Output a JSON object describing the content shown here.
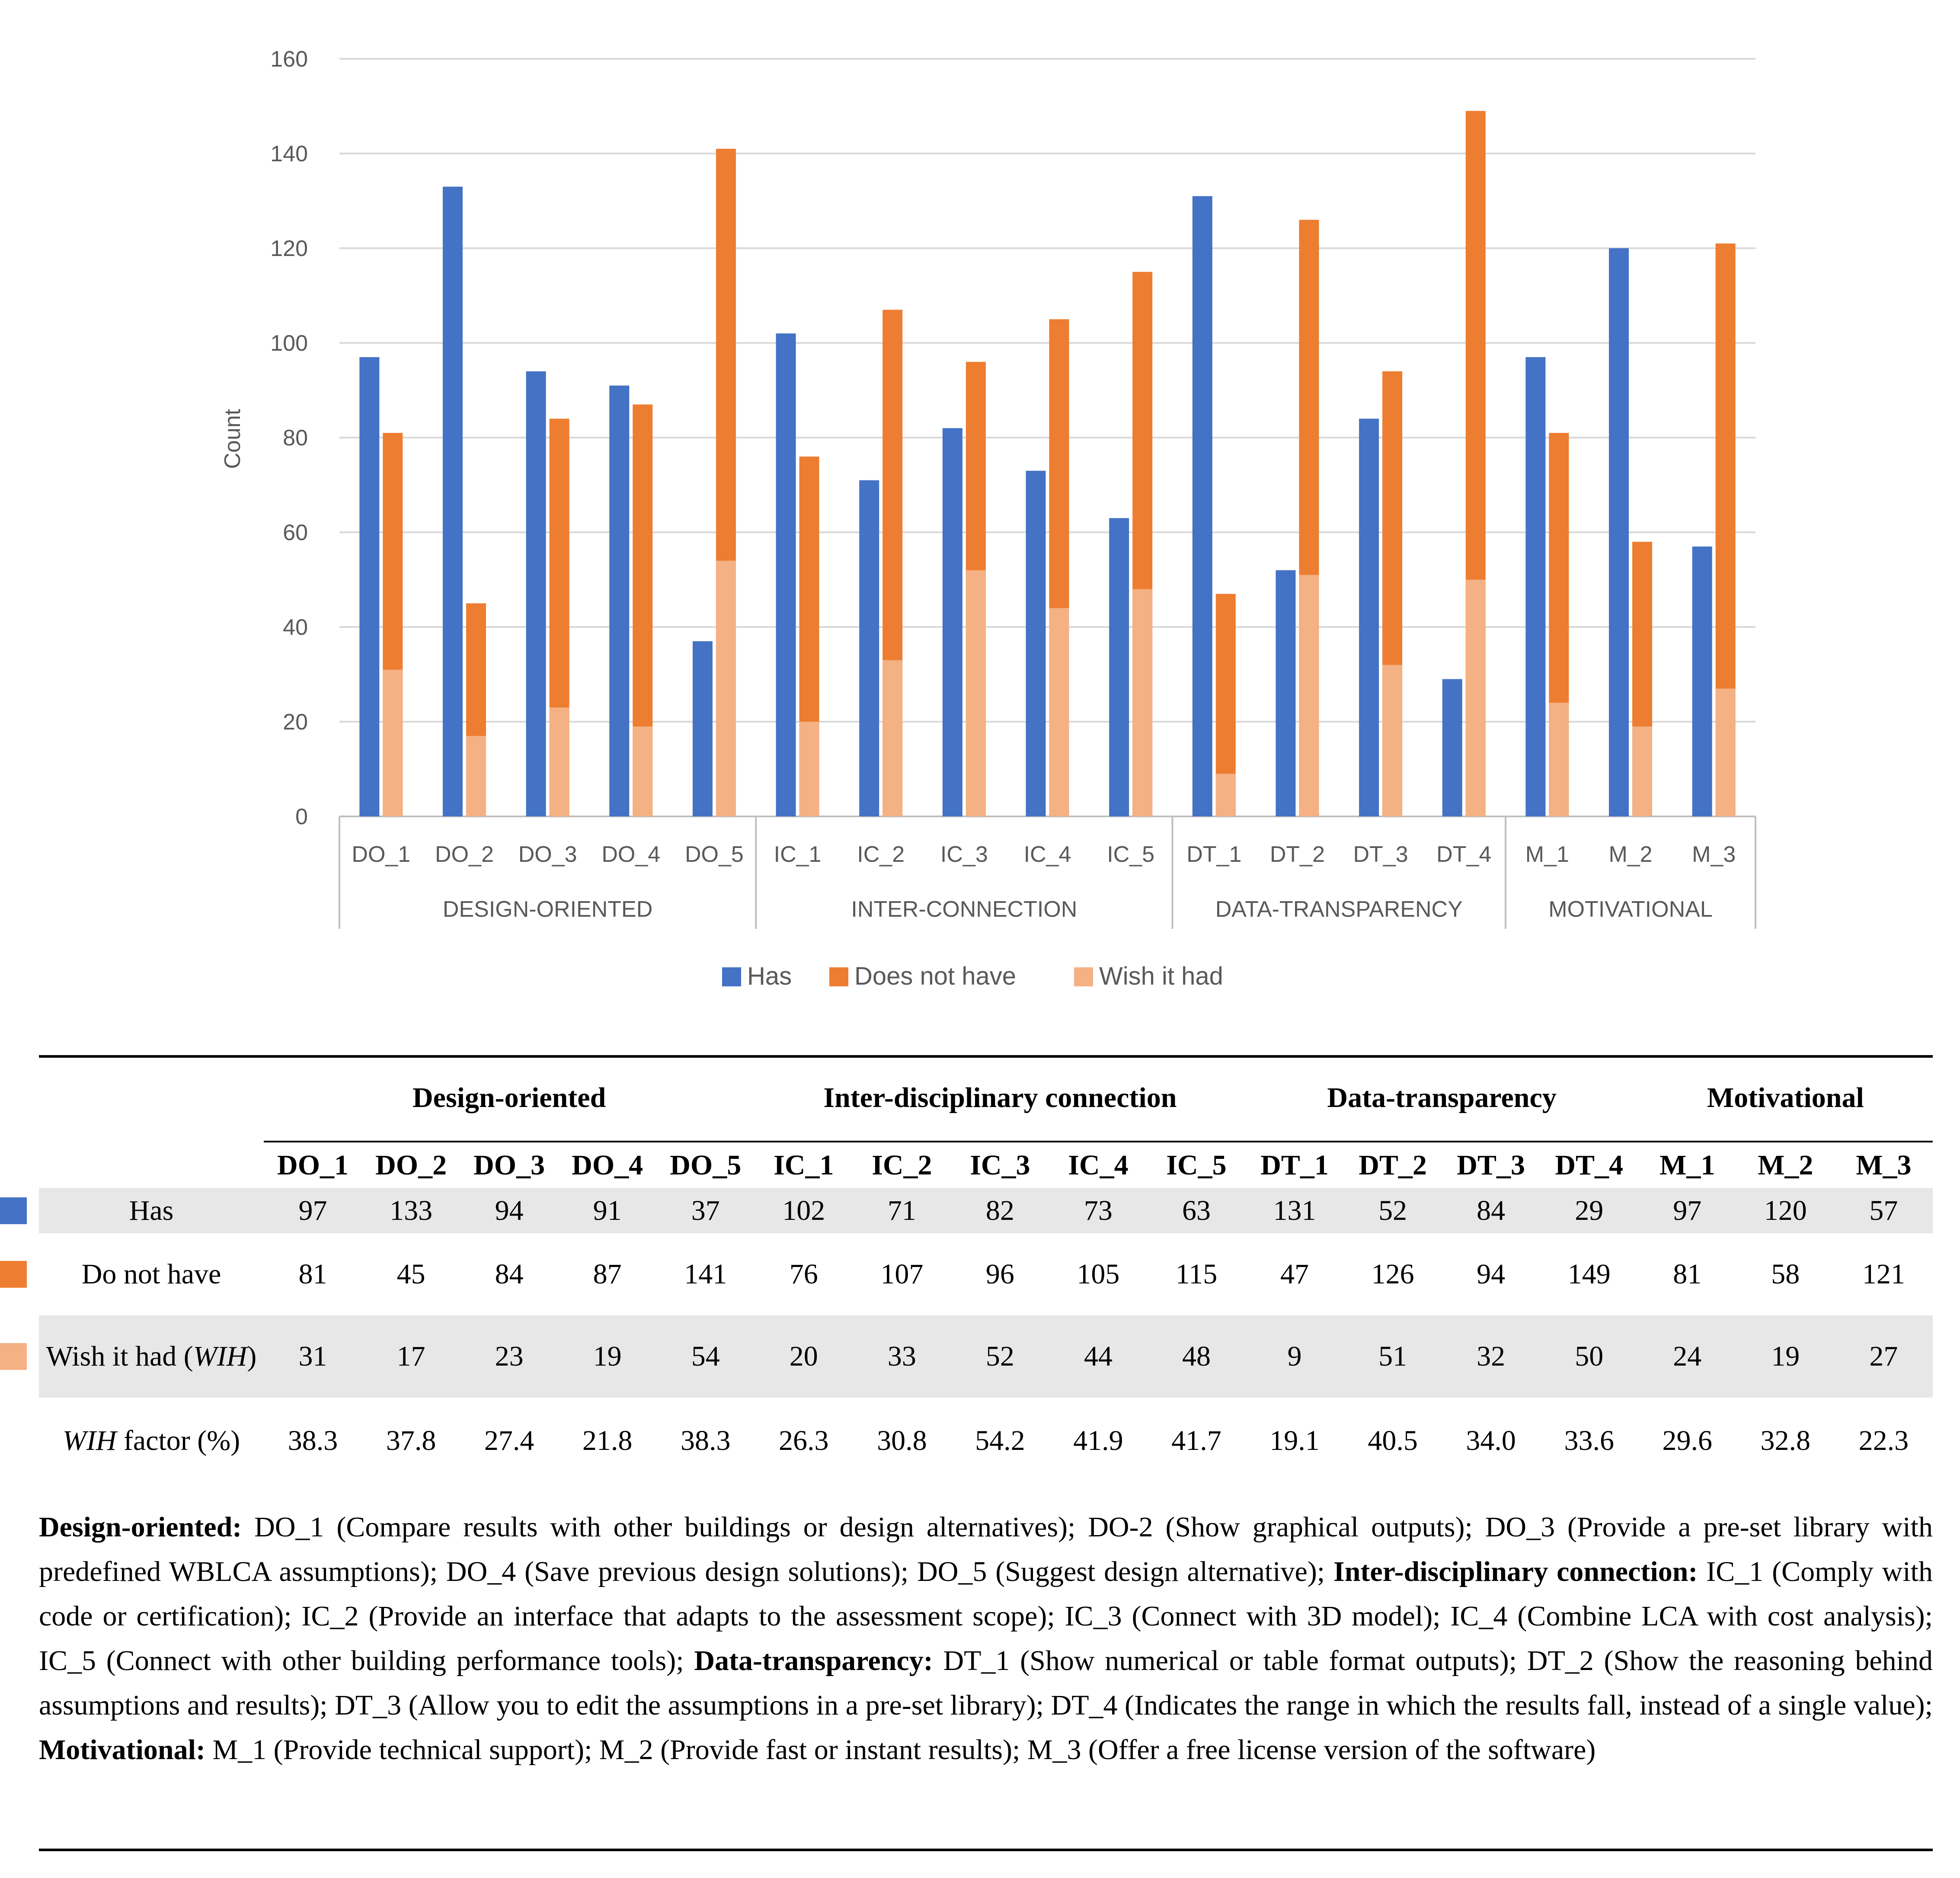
{
  "chart_data": {
    "type": "bar",
    "ylabel": "Count",
    "ylim": [
      0,
      160
    ],
    "yticks": [
      0,
      20,
      40,
      60,
      80,
      100,
      120,
      140,
      160
    ],
    "grid": true,
    "legend_position": "bottom",
    "categories": [
      "DO_1",
      "DO_2",
      "DO_3",
      "DO_4",
      "DO_5",
      "IC_1",
      "IC_2",
      "IC_3",
      "IC_4",
      "IC_5",
      "DT_1",
      "DT_2",
      "DT_3",
      "DT_4",
      "M_1",
      "M_2",
      "M_3"
    ],
    "groups": [
      {
        "name": "DESIGN-ORIENTED",
        "count": 5
      },
      {
        "name": "INTER-CONNECTION",
        "count": 5
      },
      {
        "name": "DATA-TRANSPARENCY",
        "count": 4
      },
      {
        "name": "MOTIVATIONAL",
        "count": 3
      }
    ],
    "series": [
      {
        "name": "Has",
        "color": "#4472c4",
        "values": [
          97,
          133,
          94,
          91,
          37,
          102,
          71,
          82,
          73,
          63,
          131,
          52,
          84,
          29,
          97,
          120,
          57
        ]
      },
      {
        "name": "Does not have",
        "color": "#ed7d31",
        "values": [
          81,
          45,
          84,
          87,
          141,
          76,
          107,
          96,
          105,
          115,
          47,
          126,
          94,
          149,
          81,
          58,
          121
        ]
      },
      {
        "name": "Wish it had",
        "color": "#f4b183",
        "values": [
          31,
          17,
          23,
          19,
          54,
          20,
          33,
          52,
          44,
          48,
          9,
          51,
          32,
          50,
          24,
          19,
          27
        ]
      }
    ]
  },
  "table": {
    "groups": [
      {
        "label": "Design-oriented",
        "span": 5
      },
      {
        "label": "Inter-disciplinary connection",
        "span": 5
      },
      {
        "label": "Data-transparency",
        "span": 4
      },
      {
        "label": "Motivational",
        "span": 3
      }
    ],
    "columns": [
      "DO_1",
      "DO_2",
      "DO_3",
      "DO_4",
      "DO_5",
      "IC_1",
      "IC_2",
      "IC_3",
      "IC_4",
      "IC_5",
      "DT_1",
      "DT_2",
      "DT_3",
      "DT_4",
      "M_1",
      "M_2",
      "M_3"
    ],
    "rows": [
      {
        "label": "Has",
        "swatch": "#4472c4",
        "shaded": true,
        "values": [
          "97",
          "133",
          "94",
          "91",
          "37",
          "102",
          "71",
          "82",
          "73",
          "63",
          "131",
          "52",
          "84",
          "29",
          "97",
          "120",
          "57"
        ]
      },
      {
        "label": "Do not have",
        "swatch": "#ed7d31",
        "shaded": false,
        "values": [
          "81",
          "45",
          "84",
          "87",
          "141",
          "76",
          "107",
          "96",
          "105",
          "115",
          "47",
          "126",
          "94",
          "149",
          "81",
          "58",
          "121"
        ]
      },
      {
        "label": "Wish it had",
        "label_italic": "WIH",
        "swatch": "#f4b183",
        "shaded": true,
        "values": [
          "31",
          "17",
          "23",
          "19",
          "54",
          "20",
          "33",
          "52",
          "44",
          "48",
          "9",
          "51",
          "32",
          "50",
          "24",
          "19",
          "27"
        ]
      },
      {
        "label_italic_prefix": "WIH",
        "label": "factor (%)",
        "swatch": null,
        "shaded": false,
        "values": [
          "38.3",
          "37.8",
          "27.4",
          "21.8",
          "38.3",
          "26.3",
          "30.8",
          "54.2",
          "41.9",
          "41.7",
          "19.1",
          "40.5",
          "34.0",
          "33.6",
          "29.6",
          "32.8",
          "22.3"
        ]
      }
    ]
  },
  "notes": [
    {
      "head": "Design-oriented:",
      "text": "DO_1 (Compare results with other buildings or design alternatives); DO-2 (Show graphical outputs); DO_3 (Provide a pre-set library with predefined WBLCA assumptions); DO_4 (Save previous design solutions); DO_5 (Suggest design alternative);"
    },
    {
      "head": "Inter-disciplinary connection:",
      "text": "IC_1 (Comply with code or certification); IC_2 (Provide an interface that adapts to the assessment scope); IC_3 (Connect with 3D model); IC_4 (Combine LCA with cost analysis); IC_5 (Connect with other building performance tools);"
    },
    {
      "head": "Data-transparency:",
      "text": "DT_1 (Show numerical or table format outputs); DT_2 (Show the reasoning behind assumptions and results); DT_3 (Allow you to edit the assumptions in a pre-set library); DT_4 (Indicates the range in which the results fall, instead of a single value);"
    },
    {
      "head": "Motivational:",
      "text": "M_1 (Provide technical support); M_2 (Provide fast or instant results); M_3 (Offer a free license version of the software)"
    }
  ]
}
